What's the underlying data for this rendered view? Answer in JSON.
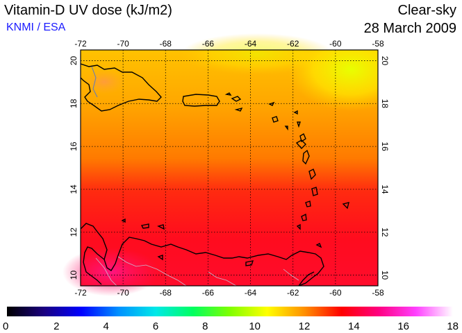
{
  "header": {
    "title": "Vitamin-D UV dose (kJ/m2)",
    "credit": "KNMI / ESA",
    "condition": "Clear-sky",
    "date": "28 March 2009"
  },
  "map": {
    "lon_ticks": [
      "-72",
      "-70",
      "-68",
      "-66",
      "-64",
      "-62",
      "-60",
      "-58"
    ],
    "lat_ticks": [
      "20",
      "18",
      "16",
      "14",
      "12",
      "10"
    ],
    "lon_range": [
      -72,
      -58
    ],
    "lat_range": [
      9.5,
      20.5
    ],
    "grid": "dotted",
    "coastline_color": "#000000"
  },
  "colorbar": {
    "labels": [
      "0",
      "2",
      "4",
      "6",
      "8",
      "10",
      "12",
      "14",
      "16",
      "18"
    ],
    "range": [
      0,
      18
    ],
    "colors": [
      "#000000",
      "#1a0080",
      "#0000ff",
      "#0090ff",
      "#00e8e8",
      "#00ff60",
      "#80ff00",
      "#ffff00",
      "#ff9000",
      "#ff0000",
      "#ff0080",
      "#ff40ff",
      "#ffffff"
    ]
  }
}
